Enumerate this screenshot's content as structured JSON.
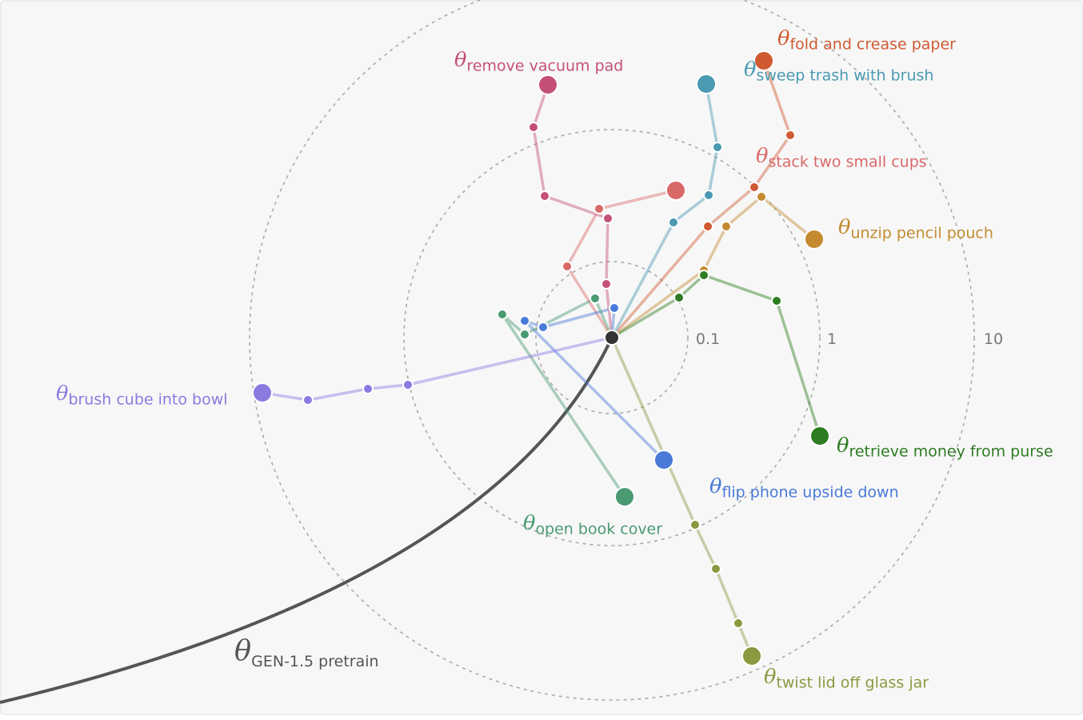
{
  "symbol": "θ",
  "rings": [
    "0.1",
    "1",
    "10"
  ],
  "pretrain": {
    "label": "GEN-1.5 pretrain"
  },
  "trajectories": [
    {
      "label": "remove vacuum pad",
      "color": "#c4507a"
    },
    {
      "label": "fold and crease paper",
      "color": "#d05a32"
    },
    {
      "label": "sweep trash with brush",
      "color": "#4a9ab2"
    },
    {
      "label": "stack two small cups",
      "color": "#d96868"
    },
    {
      "label": "unzip pencil pouch",
      "color": "#c48a30"
    },
    {
      "label": "retrieve money from purse",
      "color": "#2e7d22"
    },
    {
      "label": "twist lid off glass jar",
      "color": "#8a9a40"
    },
    {
      "label": "flip phone upside down",
      "color": "#4a7ad8"
    },
    {
      "label": "open book cover",
      "color": "#4a9a72"
    },
    {
      "label": "brush cube into bowl",
      "color": "#8a7ae0"
    }
  ]
}
